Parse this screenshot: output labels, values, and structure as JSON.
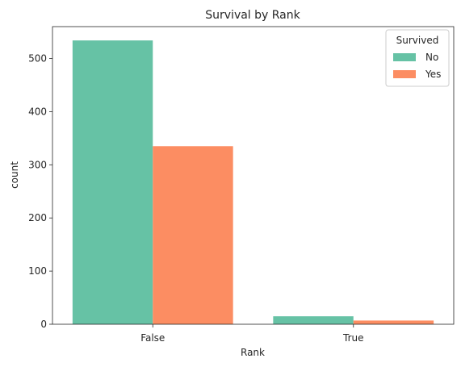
{
  "chart_data": {
    "type": "bar",
    "title": "Survival by Rank",
    "xlabel": "Rank",
    "ylabel": "count",
    "categories": [
      "False",
      "True"
    ],
    "series": [
      {
        "name": "No",
        "values": [
          534,
          15
        ],
        "color": "#66c2a5"
      },
      {
        "name": "Yes",
        "values": [
          335,
          7
        ],
        "color": "#fc8d62"
      }
    ],
    "ylim": [
      0,
      560
    ],
    "yticks": [
      0,
      100,
      200,
      300,
      400,
      500
    ],
    "grid": false,
    "legend": {
      "title": "Survived",
      "placement": "top-right"
    }
  }
}
